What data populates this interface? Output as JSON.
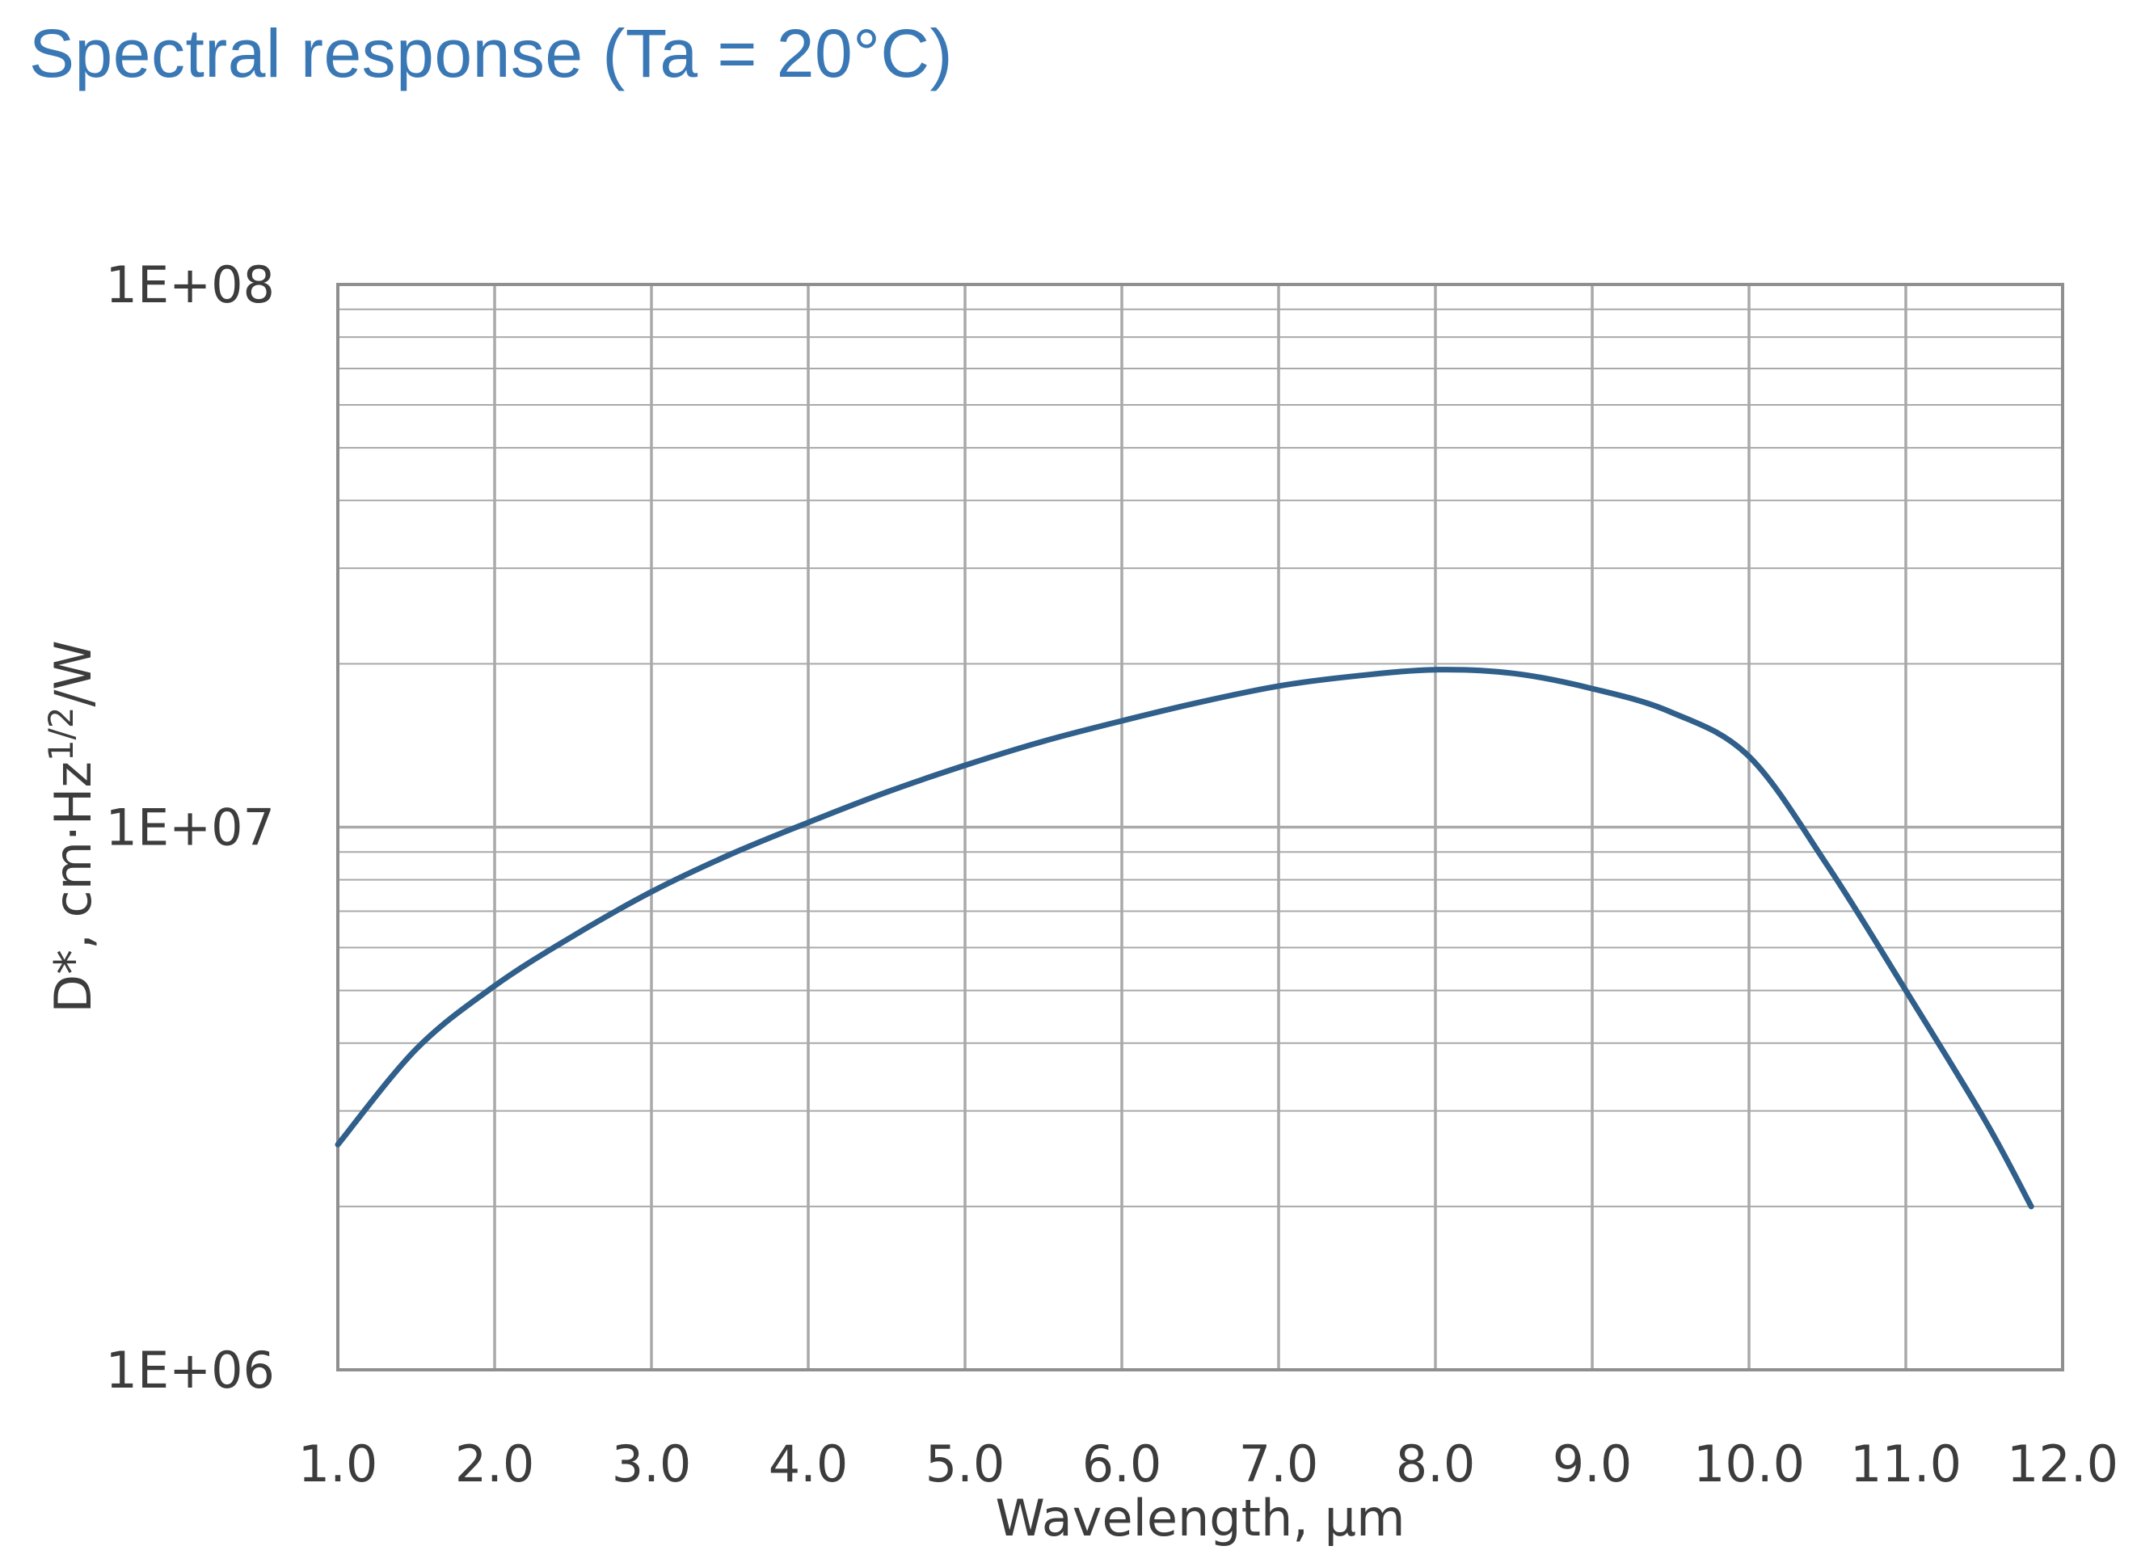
{
  "chart_data": {
    "type": "line",
    "title": "Spectral response (Ta = 20°C)",
    "xlabel": "Wavelength, µm",
    "ylabel": "D*, cm·Hz¹ᐟ²/W",
    "ylabel_main": "D*, cm·Hz",
    "ylabel_sup": "1/2",
    "ylabel_tail": "/W",
    "xlim": [
      1.0,
      12.0
    ],
    "ylim": [
      1000000,
      100000000
    ],
    "y_scale": "log",
    "grid": true,
    "x_ticks": [
      1,
      2,
      3,
      4,
      5,
      6,
      7,
      8,
      9,
      10,
      11,
      12
    ],
    "x_tick_labels": [
      "1.0",
      "2.0",
      "3.0",
      "4.0",
      "5.0",
      "6.0",
      "7.0",
      "8.0",
      "9.0",
      "10.0",
      "11.0",
      "12.0"
    ],
    "y_ticks": [
      1000000,
      10000000,
      100000000
    ],
    "y_tick_labels": [
      "1E+06",
      "1E+07",
      "1E+08"
    ],
    "series": [
      {
        "color": "#2f5f8a",
        "x": [
          1.0,
          1.5,
          2.0,
          2.5,
          3.0,
          3.5,
          4.0,
          4.5,
          5.0,
          5.5,
          6.0,
          6.5,
          7.0,
          7.5,
          8.0,
          8.5,
          9.0,
          9.5,
          10.0,
          10.5,
          11.0,
          11.5,
          11.8
        ],
        "y": [
          2600000,
          3900000,
          5100000,
          6300000,
          7600000,
          8900000,
          10200000,
          11600000,
          13000000,
          14400000,
          15700000,
          17000000,
          18200000,
          19000000,
          19500000,
          19200000,
          18000000,
          16300000,
          13500000,
          8500000,
          5000000,
          2900000,
          2000000
        ]
      }
    ]
  }
}
